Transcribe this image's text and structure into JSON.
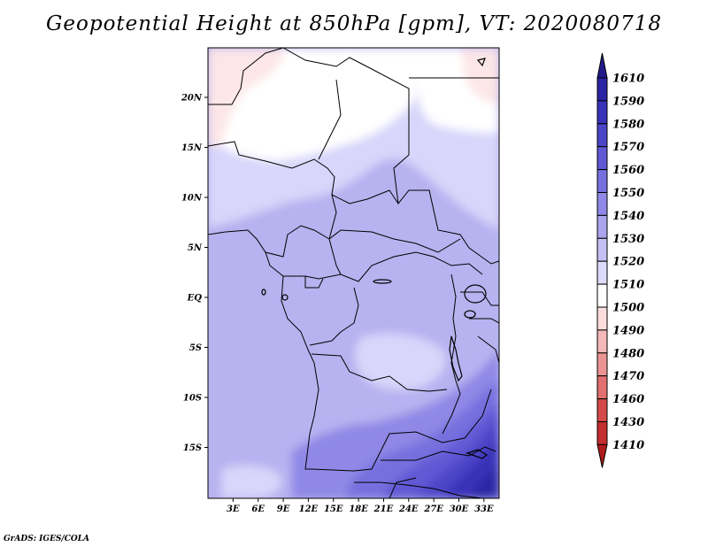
{
  "title": "Geopotential Height at 850hPa [gpm], VT: 2020080718",
  "credit": "GrADS: IGES/COLA",
  "map": {
    "lat_labels": [
      "20N",
      "15N",
      "10N",
      "5N",
      "EQ",
      "5S",
      "10S",
      "15S"
    ],
    "lon_labels": [
      "3E",
      "6E",
      "9E",
      "12E",
      "15E",
      "18E",
      "21E",
      "24E",
      "27E",
      "30E",
      "33E"
    ],
    "lon_range": [
      0,
      35
    ],
    "lat_range": [
      -20,
      24
    ]
  },
  "colorbar": {
    "levels": [
      "1610",
      "1590",
      "1580",
      "1570",
      "1560",
      "1550",
      "1540",
      "1530",
      "1520",
      "1510",
      "1500",
      "1490",
      "1480",
      "1470",
      "1460",
      "1430",
      "1410"
    ],
    "colors": [
      "#221a8a",
      "#2b25a3",
      "#3832b8",
      "#4c45c8",
      "#6058d4",
      "#7670de",
      "#8f88e6",
      "#aaa4ee",
      "#c4c0f5",
      "#dddbfa",
      "#ffffff",
      "#fbdcdc",
      "#f5b8b8",
      "#ec9494",
      "#e27070",
      "#d44a4a",
      "#c42e2e",
      "#b01a1a"
    ]
  }
}
